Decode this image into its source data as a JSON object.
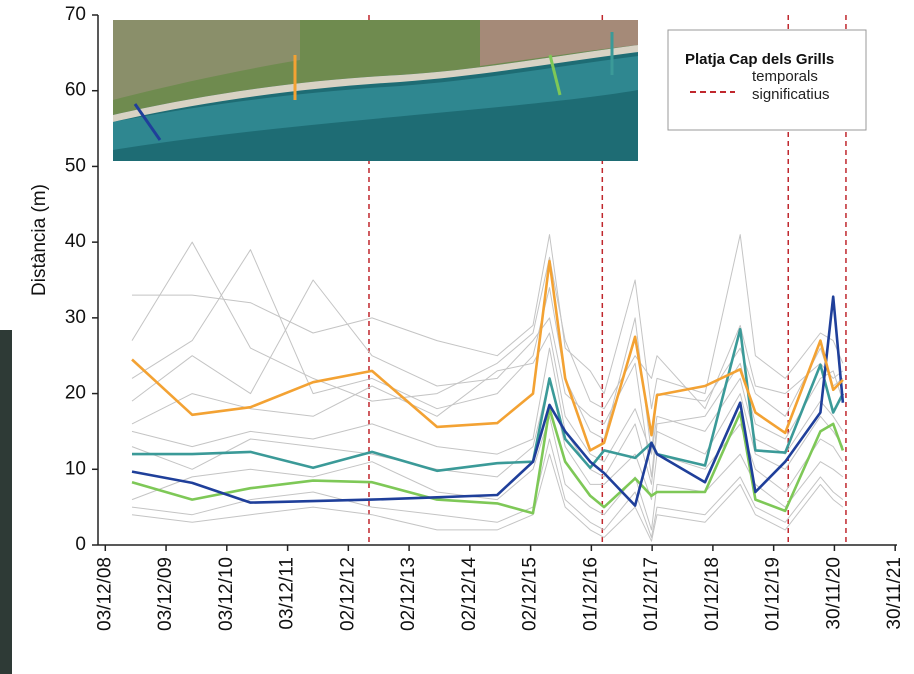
{
  "chart_data": {
    "type": "line",
    "y_label": "Distància (m)",
    "legend_title": "Platja Cap dels Grills",
    "storm_label": "temporals significatius",
    "storm_color": "#c0272d",
    "storms": [
      2013.26,
      2017.1,
      2020.16,
      2021.11
    ],
    "xlim": [
      2008.8,
      2021.95
    ],
    "xticks": [
      {
        "value": 2008.92,
        "label": "03/12/08"
      },
      {
        "value": 2009.92,
        "label": "03/12/09"
      },
      {
        "value": 2010.92,
        "label": "03/12/10"
      },
      {
        "value": 2011.92,
        "label": "03/12/11"
      },
      {
        "value": 2012.92,
        "label": "02/12/12"
      },
      {
        "value": 2013.92,
        "label": "02/12/13"
      },
      {
        "value": 2014.92,
        "label": "02/12/14"
      },
      {
        "value": 2015.92,
        "label": "02/12/15"
      },
      {
        "value": 2016.92,
        "label": "01/12/16"
      },
      {
        "value": 2017.92,
        "label": "01/12/17"
      },
      {
        "value": 2018.92,
        "label": "01/12/18"
      },
      {
        "value": 2019.92,
        "label": "01/12/19"
      },
      {
        "value": 2020.92,
        "label": "30/11/20"
      },
      {
        "value": 2021.92,
        "label": "30/11/21"
      }
    ],
    "ylim": [
      0,
      70
    ],
    "yticks": [
      0,
      10,
      20,
      30,
      40,
      50,
      60,
      70
    ],
    "x": [
      2009.36,
      2010.35,
      2011.31,
      2012.34,
      2013.31,
      2014.38,
      2015.37,
      2015.96,
      2016.23,
      2016.49,
      2016.9,
      2017.13,
      2017.64,
      2017.91,
      2018.0,
      2018.79,
      2019.37,
      2019.62,
      2020.11,
      2020.69,
      2020.9,
      2021.06
    ],
    "series": [
      {
        "color": "#c4c4c4",
        "values": [
          33,
          33,
          32,
          28,
          30,
          27,
          25,
          29,
          41,
          26,
          23,
          20,
          35,
          18,
          22,
          20,
          41,
          25,
          22,
          28,
          27,
          24
        ]
      },
      {
        "color": "#c4c4c4",
        "values": [
          27,
          40,
          26,
          22,
          19,
          20,
          24,
          28,
          38,
          27,
          19,
          18,
          25,
          22,
          25,
          18,
          29,
          21,
          20,
          24,
          22,
          23
        ]
      },
      {
        "color": "#c4c4c4",
        "values": [
          22,
          27,
          39,
          20,
          22,
          18,
          20,
          25,
          34,
          22,
          15,
          14,
          30,
          12,
          20,
          19,
          26,
          20,
          17,
          26,
          21,
          22
        ]
      },
      {
        "color": "#c4c4c4",
        "values": [
          19,
          25,
          20,
          35,
          25,
          21,
          22,
          27,
          30,
          20,
          17,
          16,
          24,
          9,
          16,
          17,
          24,
          16,
          14,
          22,
          23,
          19
        ]
      },
      {
        "color": "#c4c4c4",
        "values": [
          16,
          20,
          18,
          17,
          21,
          17,
          23,
          24,
          28,
          17,
          12,
          11,
          18,
          12,
          17,
          15,
          22,
          14,
          12,
          19,
          17,
          15
        ]
      },
      {
        "color": "#c4c4c4",
        "values": [
          15,
          13,
          15,
          14,
          16,
          13,
          12,
          14,
          26,
          15,
          10,
          9,
          16,
          8,
          15,
          12,
          20,
          12,
          10,
          17,
          15,
          13
        ]
      },
      {
        "color": "#c4c4c4",
        "values": [
          13,
          10,
          14,
          13,
          12,
          10,
          9,
          13,
          22,
          13,
          8,
          8,
          12,
          6,
          12,
          10,
          16,
          10,
          7,
          14,
          13,
          11
        ]
      },
      {
        "color": "#c4c4c4",
        "values": [
          6,
          9,
          10,
          9,
          11,
          7,
          6,
          10,
          17,
          8,
          5,
          4,
          9,
          2,
          8,
          7,
          12,
          8,
          5,
          11,
          10,
          9
        ]
      },
      {
        "color": "#c4c4c4",
        "values": [
          5,
          4,
          6,
          7,
          5,
          4,
          3,
          5,
          14,
          6,
          3,
          2,
          7,
          1,
          5,
          4,
          9,
          5,
          3,
          9,
          7,
          6
        ]
      },
      {
        "color": "#c4c4c4",
        "values": [
          4,
          3,
          4,
          5,
          4,
          2,
          2,
          4,
          12,
          5,
          2,
          1,
          5,
          0.5,
          4,
          3,
          8,
          4,
          2,
          8,
          6,
          5
        ]
      },
      {
        "color": "#7ec857",
        "values": [
          8.3,
          6,
          7.5,
          8.5,
          8.3,
          6,
          5.5,
          4.2,
          18,
          11,
          6.5,
          5,
          8.8,
          6.5,
          7,
          7,
          17.5,
          6,
          4.5,
          15,
          16,
          12.5
        ]
      },
      {
        "color": "#3b9a98",
        "values": [
          12,
          12,
          12.3,
          10.2,
          12.3,
          9.8,
          10.8,
          11,
          22,
          14,
          10.2,
          12.5,
          11.5,
          13.5,
          12,
          10.5,
          28.5,
          12.5,
          12.2,
          23.8,
          17.5,
          20
        ]
      },
      {
        "color": "#1f3f9a",
        "values": [
          9.7,
          8.2,
          5.6,
          5.8,
          6,
          6.3,
          6.6,
          11,
          18.5,
          15,
          11,
          9.5,
          5.2,
          13.5,
          12,
          8.3,
          18.8,
          7,
          11,
          17.5,
          32.8,
          18.8
        ]
      },
      {
        "color": "#f3a233",
        "values": [
          24.5,
          17.2,
          18.2,
          21.5,
          23,
          15.6,
          16.1,
          20,
          37.5,
          22,
          12.5,
          13.5,
          27.5,
          14.5,
          19.8,
          21,
          23.2,
          17.5,
          14.8,
          27,
          20.5,
          21.8
        ]
      }
    ]
  }
}
